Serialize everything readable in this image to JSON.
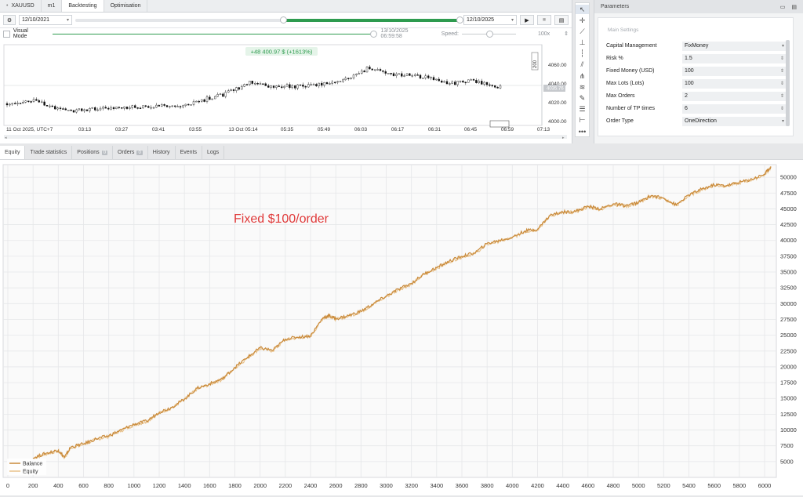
{
  "top": {
    "symbol": "XAUUSD",
    "timeframe": "m1",
    "tabs": [
      "Backtesting",
      "Optimisation"
    ],
    "date_from": "12/10/2021",
    "date_to": "12/10/2025",
    "visual_mode_label": "Visual Mode",
    "current_time": "13/10/2025 06:59:58",
    "speed_label": "Speed:",
    "speed_value": "100x"
  },
  "price_chart": {
    "profit_label": "+48 400.97 $ (+1613%)",
    "scale_label": "200",
    "price_ticks": [
      "4060.00",
      "4040.00",
      "4020.00",
      "4000.00"
    ],
    "current_price": "4035.76",
    "time_ticks": [
      "11 Oct 2025, UTC+7",
      "03:13",
      "03:27",
      "03:41",
      "03:55",
      "13 Oct 05:14",
      "05:35",
      "05:49",
      "06:03",
      "06:17",
      "06:31",
      "06:45",
      "06:59",
      "07:13"
    ]
  },
  "parameters": {
    "title": "Parameters",
    "section": "Main Settings",
    "rows": [
      {
        "label": "Capital Management",
        "value": "FixMoney",
        "kind": "select"
      },
      {
        "label": "Risk %",
        "value": "1.5",
        "kind": "number"
      },
      {
        "label": "Fixed Money (USD)",
        "value": "100",
        "kind": "number"
      },
      {
        "label": "Max Lots (Lots)",
        "value": "100",
        "kind": "number"
      },
      {
        "label": "Max Orders",
        "value": "2",
        "kind": "number"
      },
      {
        "label": "Number of TP times",
        "value": "6",
        "kind": "number"
      },
      {
        "label": "Order Type",
        "value": "OneDirection",
        "kind": "select"
      }
    ]
  },
  "bottom_tabs": [
    {
      "label": "Equity",
      "badge": ""
    },
    {
      "label": "Trade statistics",
      "badge": ""
    },
    {
      "label": "Positions",
      "badge": "0"
    },
    {
      "label": "Orders",
      "badge": "0"
    },
    {
      "label": "History",
      "badge": ""
    },
    {
      "label": "Events",
      "badge": ""
    },
    {
      "label": "Logs",
      "badge": ""
    }
  ],
  "colors": {
    "equity_line": "#d9a05b",
    "accent_green": "#2e9b4f",
    "annotation": "#e03a3a"
  },
  "chart_data": {
    "type": "line",
    "annotation": "Fixed $100/order",
    "legend": [
      "Balance",
      "Equity"
    ],
    "legend_position": "bottom-left",
    "xlim": [
      0,
      6100
    ],
    "ylim": [
      2500,
      52000
    ],
    "x_ticks": [
      0,
      200,
      400,
      600,
      800,
      1000,
      1200,
      1400,
      1600,
      1800,
      2000,
      2200,
      2400,
      2600,
      2800,
      3000,
      3200,
      3400,
      3600,
      3800,
      4000,
      4200,
      4400,
      4600,
      4800,
      5000,
      5200,
      5400,
      5600,
      5800,
      6000
    ],
    "y_ticks": [
      5000,
      7500,
      10000,
      12500,
      15000,
      17500,
      20000,
      22500,
      25000,
      27500,
      30000,
      32500,
      35000,
      37500,
      40000,
      42500,
      45000,
      47500,
      50000
    ],
    "grid": true,
    "series": [
      {
        "name": "Balance",
        "x": [
          200,
          300,
          400,
          450,
          500,
          600,
          700,
          800,
          900,
          1000,
          1100,
          1200,
          1300,
          1400,
          1500,
          1600,
          1700,
          1800,
          1900,
          2000,
          2100,
          2200,
          2300,
          2400,
          2500,
          2550,
          2600,
          2700,
          2800,
          2900,
          3000,
          3100,
          3200,
          3300,
          3400,
          3500,
          3600,
          3700,
          3800,
          3900,
          4000,
          4100,
          4200,
          4300,
          4400,
          4500,
          4600,
          4700,
          4800,
          4900,
          5000,
          5100,
          5200,
          5300,
          5400,
          5500,
          5600,
          5700,
          5800,
          5900,
          6000,
          6050
        ],
        "y": [
          5600,
          6300,
          6800,
          5700,
          7300,
          7800,
          8600,
          9100,
          10000,
          10900,
          11400,
          12800,
          13600,
          14900,
          16600,
          17300,
          18100,
          19900,
          21500,
          23000,
          22600,
          24400,
          24700,
          24900,
          27800,
          28100,
          27600,
          28100,
          28800,
          30000,
          31200,
          32300,
          33200,
          34700,
          35700,
          36700,
          37500,
          38000,
          39500,
          40000,
          40500,
          41500,
          41800,
          44000,
          44500,
          44600,
          45400,
          45000,
          45800,
          45500,
          46000,
          47100,
          46700,
          45600,
          47200,
          48100,
          48800,
          48700,
          49200,
          49700,
          50500,
          51700
        ]
      },
      {
        "name": "Equity",
        "x": [
          200,
          300,
          400,
          450,
          500,
          600,
          700,
          800,
          900,
          1000,
          1100,
          1200,
          1300,
          1400,
          1500,
          1600,
          1700,
          1800,
          1900,
          2000,
          2100,
          2200,
          2300,
          2400,
          2500,
          2550,
          2600,
          2700,
          2800,
          2900,
          3000,
          3100,
          3200,
          3300,
          3400,
          3500,
          3600,
          3700,
          3800,
          3900,
          4000,
          4100,
          4200,
          4300,
          4400,
          4500,
          4600,
          4700,
          4800,
          4900,
          5000,
          5100,
          5200,
          5300,
          5400,
          5500,
          5600,
          5700,
          5800,
          5900,
          6000,
          6050
        ],
        "y": [
          5500,
          6200,
          6700,
          5600,
          7200,
          7700,
          8500,
          9000,
          9900,
          10800,
          11300,
          12700,
          13500,
          14800,
          16500,
          17200,
          18000,
          19800,
          21400,
          22900,
          22500,
          24300,
          24600,
          24800,
          27700,
          28000,
          27500,
          28000,
          28700,
          29900,
          31100,
          32200,
          33100,
          34600,
          35600,
          36600,
          37400,
          37900,
          39400,
          39900,
          40400,
          41400,
          41700,
          43900,
          44400,
          44500,
          45300,
          44900,
          45700,
          45400,
          45900,
          47000,
          46600,
          45500,
          47100,
          48000,
          48700,
          48600,
          49100,
          49600,
          50400,
          51600
        ]
      }
    ]
  }
}
